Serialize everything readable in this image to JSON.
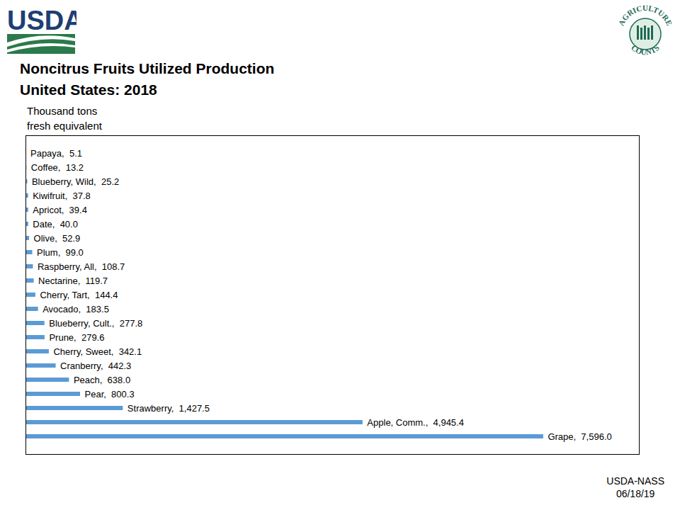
{
  "chart_data": {
    "type": "bar",
    "orientation": "horizontal",
    "title": "Noncitrus Fruits Utilized Production",
    "subtitle": "United States:  2018",
    "xlabel": "Thousand tons fresh equivalent",
    "categories": [
      "Papaya",
      "Coffee",
      "Blueberry, Wild",
      "Kiwifruit",
      "Apricot",
      "Date",
      "Olive",
      "Plum",
      "Raspberry, All",
      "Nectarine",
      "Cherry, Tart",
      "Avocado",
      "Blueberry, Cult.",
      "Prune",
      "Cherry, Sweet",
      "Cranberry",
      "Peach",
      "Pear",
      "Strawberry",
      "Apple, Comm.",
      "Grape"
    ],
    "values": [
      5.1,
      13.2,
      25.2,
      37.8,
      39.4,
      40.0,
      52.9,
      99.0,
      108.7,
      119.7,
      144.4,
      183.5,
      277.8,
      279.6,
      342.1,
      442.3,
      638.0,
      800.3,
      1427.5,
      4945.4,
      7596.0
    ],
    "value_labels": [
      "Papaya,  5.1",
      "Coffee,  13.2",
      "Blueberry, Wild,  25.2",
      "Kiwifruit,  37.8",
      "Apricot,  39.4",
      "Date,  40.0",
      "Olive,  52.9",
      "Plum,  99.0",
      "Raspberry, All,  108.7",
      "Nectarine,  119.7",
      "Cherry, Tart,  144.4",
      "Avocado,  183.5",
      "Blueberry, Cult.,  277.8",
      "Prune,  279.6",
      "Cherry, Sweet,  342.1",
      "Cranberry,  442.3",
      "Peach,  638.0",
      "Pear,  800.3",
      "Strawberry,  1,427.5",
      "Apple, Comm.,  4,945.4",
      "Grape,  7,596.0"
    ],
    "color": "#5b9bd5",
    "xlim": [
      0,
      9000
    ],
    "xticks": [],
    "grid": false,
    "data_labels": true,
    "tick_labels": false,
    "annotations": {
      "logo": "USDA",
      "badge_top": "AGRICULTURE",
      "badge_bottom": "COUNTS",
      "source": "USDA-NASS",
      "date": "06/18/19"
    }
  }
}
